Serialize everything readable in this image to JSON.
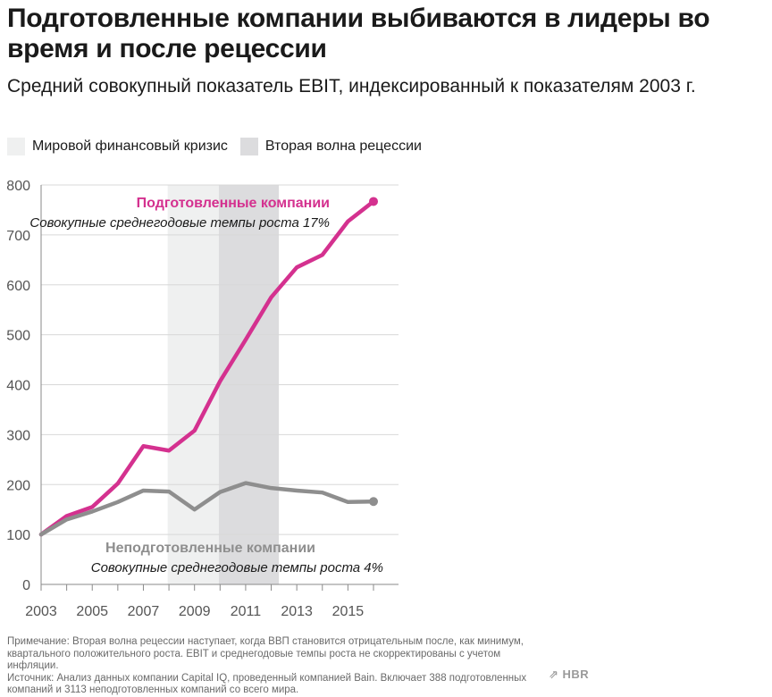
{
  "title": "Подготовленные компании выбиваются в лидеры во время и после рецессии",
  "subtitle": "Средний совокупный показатель EBIT, индексированный к показателям 2003 г.",
  "legend": [
    {
      "label": "Мировой финансовый кризис",
      "color": "#eff0f0"
    },
    {
      "label": "Вторая волна рецессии",
      "color": "#dcdcde"
    }
  ],
  "chart_data": {
    "type": "line",
    "x": [
      2003,
      2004,
      2005,
      2006,
      2007,
      2008,
      2009,
      2010,
      2011,
      2012,
      2013,
      2014,
      2015,
      2016
    ],
    "x_ticks": [
      2003,
      2005,
      2007,
      2009,
      2011,
      2013,
      2015
    ],
    "y_ticks": [
      0,
      100,
      200,
      300,
      400,
      500,
      600,
      700,
      800
    ],
    "ylim": [
      0,
      800
    ],
    "xlim": [
      2003,
      2016
    ],
    "shaded_periods": [
      {
        "label": "Мировой финансовый кризис",
        "from": 2007.95,
        "to": 2009.95,
        "color": "#eff0f0"
      },
      {
        "label": "Вторая волна рецессии",
        "from": 2009.95,
        "to": 2012.3,
        "color": "#dcdcde"
      }
    ],
    "series": [
      {
        "name": "Подготовленные компании",
        "note": "Совокупные среднегодовые темпы роста 17%",
        "color": "#d4318f",
        "values": [
          100,
          137,
          155,
          202,
          277,
          268,
          308,
          407,
          490,
          575,
          635,
          660,
          727,
          767
        ]
      },
      {
        "name": "Неподготовленные компании",
        "note": "Совокупные среднегодовые темпы роста 4%",
        "color": "#8e8e8e",
        "values": [
          100,
          130,
          146,
          165,
          188,
          186,
          150,
          185,
          203,
          193,
          188,
          184,
          165,
          166
        ]
      }
    ]
  },
  "footnote": [
    "Примечание: Вторая волна рецессии наступает, когда ВВП становится отрицательным после, как минимум,",
    "квартального положительного роста. EBIT и среднегодовые темпы роста не скорректированы с учетом инфляции.",
    "Источник: Анализ данных компании Capital IQ, проведенный компанией Bain. Включает 388 подготовленных",
    "компаний и 3113 неподготовленных компаний со всего мира."
  ],
  "brand": "HBR"
}
